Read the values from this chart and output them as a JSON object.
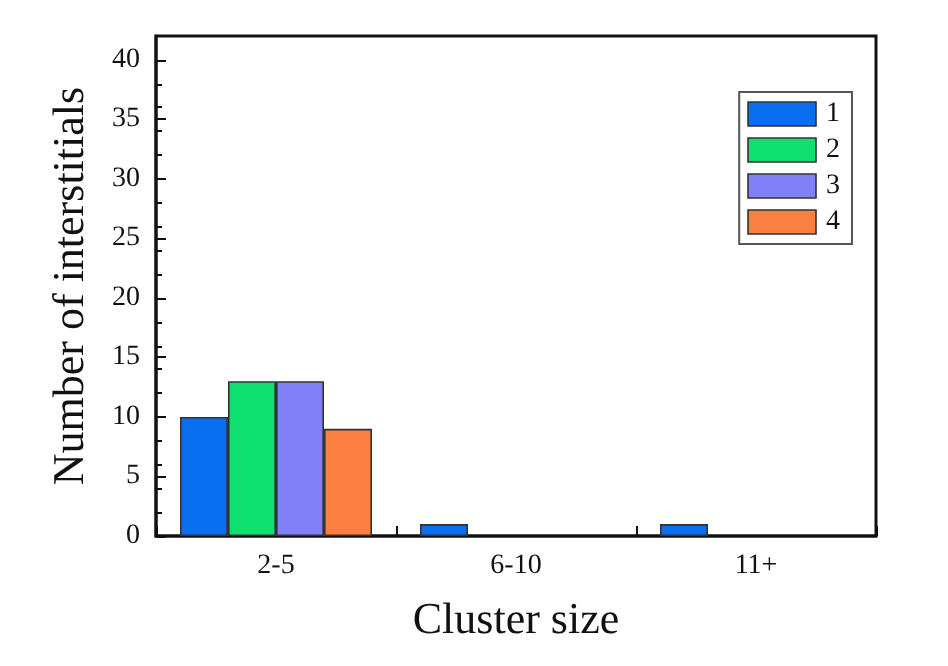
{
  "chart_data": {
    "type": "bar",
    "xlabel": "Cluster size",
    "ylabel": "Number of interstitials",
    "categories": [
      "2-5",
      "6-10",
      "11+"
    ],
    "series": [
      {
        "name": "1",
        "color": "#0a6ef0",
        "values": [
          10,
          1,
          1
        ]
      },
      {
        "name": "2",
        "color": "#10e070",
        "values": [
          13,
          null,
          null
        ]
      },
      {
        "name": "3",
        "color": "#8080f8",
        "values": [
          13,
          null,
          null
        ]
      },
      {
        "name": "4",
        "color": "#fb7f40",
        "values": [
          9,
          null,
          null
        ]
      }
    ],
    "ylim": [
      0,
      42
    ],
    "yticks": [
      0,
      5,
      10,
      15,
      20,
      25,
      30,
      35,
      40
    ],
    "grid": false,
    "legend": "top right"
  }
}
